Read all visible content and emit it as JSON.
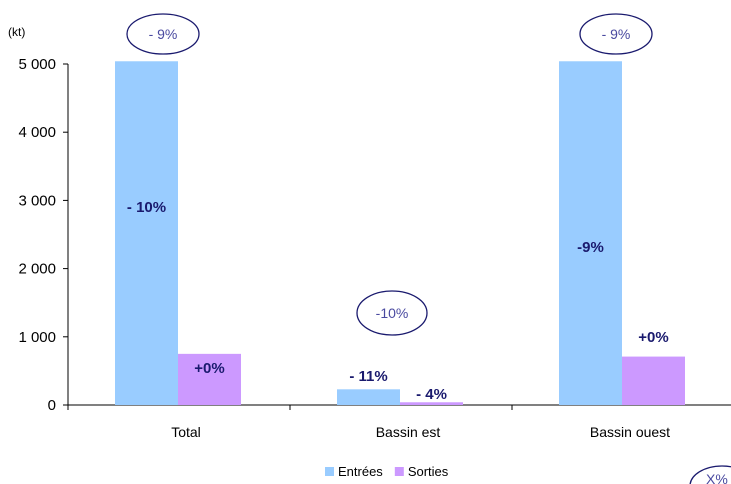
{
  "chart_data": {
    "type": "bar",
    "ylabel": "(kt)",
    "categories": [
      "Total",
      "Bassin est",
      "Bassin ouest"
    ],
    "ylim": [
      0,
      5000
    ],
    "yticks": [
      0,
      1000,
      2000,
      3000,
      4000,
      5000
    ],
    "ytick_labels": [
      "0",
      "1 000",
      "2 000",
      "3 000",
      "4 000",
      "5 000"
    ],
    "series": [
      {
        "name": "Entrées",
        "color": "#99ccff",
        "values": [
          5040,
          230,
          5040
        ],
        "labels": [
          "- 10%",
          "- 11%",
          "-9%"
        ]
      },
      {
        "name": "Sorties",
        "color": "#cc99ff",
        "values": [
          750,
          40,
          710
        ],
        "labels": [
          "+0%",
          "- 4%",
          "+0%"
        ]
      }
    ],
    "bubble_annotations": [
      "- 9%",
      "-10%",
      "- 9%"
    ],
    "legend_position": "bottom",
    "grid": false,
    "corner_annotation": "X%"
  }
}
